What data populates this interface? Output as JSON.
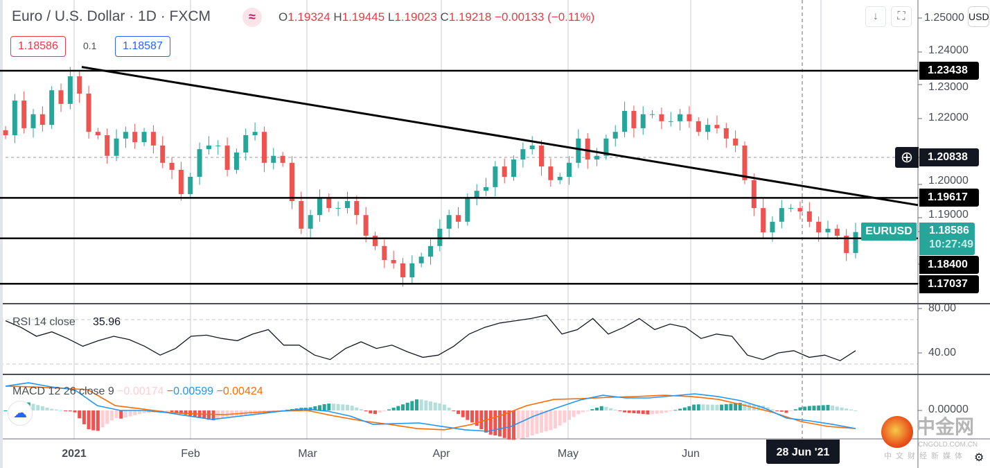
{
  "header": {
    "symbol_title": "Euro / U.S. Dollar · 1D · FXCM",
    "indicator_icon": "wave-icon",
    "ohlc": {
      "o_label": "O",
      "o": "1.19324",
      "h_label": "H",
      "h": "1.19445",
      "l_label": "L",
      "l": "1.19023",
      "c_label": "C",
      "c": "1.19218",
      "change": "−0.00133 (−0.11%)"
    },
    "bid": "1.18586",
    "spread": "0.1",
    "ask": "1.18587"
  },
  "toolbar": {
    "download_icon": "↓",
    "fullscreen_icon": "⛶",
    "currency": "USD"
  },
  "price_axis": {
    "ticks": [
      "1.24000",
      "1.23000",
      "1.22000",
      "1.20000",
      "1.19000"
    ],
    "top_tick_partial": "1.25000"
  },
  "levels": {
    "l1": "1.23438",
    "crosshair": "1.20838",
    "l2": "1.19617",
    "l3": "1.18400",
    "l4": "1.17037"
  },
  "last_price": {
    "symbol": "EURUSD",
    "price": "1.18586",
    "countdown": "10:27:49"
  },
  "rsi": {
    "legend_name": "RSI 14 close",
    "legend_value": "35.96",
    "ticks": [
      "80.00",
      "40.00"
    ]
  },
  "macd": {
    "legend_name": "MACD 12 26 close 9",
    "hist_value": "−0.00174",
    "macd_value": "−0.00599",
    "signal_value": "−0.00424",
    "tick": "0.00000"
  },
  "time_axis": {
    "labels": [
      "2021",
      "Feb",
      "Mar",
      "Apr",
      "May",
      "Jun"
    ],
    "crosshair_label": "28 Jun '21"
  },
  "watermark": {
    "name": "中金网",
    "domain": "CNGOLD.COM.CN",
    "tagline": "中文财经新媒体"
  },
  "colors": {
    "up": "#26a69a",
    "down": "#ef5350",
    "macd": "#2196f3",
    "signal": "#ff6d00"
  },
  "chart_data": {
    "type": "candlestick",
    "price_range": [
      1.165,
      1.255
    ],
    "horizontal_levels": [
      1.23438,
      1.19617,
      1.184,
      1.17037
    ],
    "trendline": {
      "from": 1.2355,
      "to": 1.194
    },
    "closes": [
      1.215,
      1.2254,
      1.2171,
      1.2213,
      1.2181,
      1.2285,
      1.2244,
      1.2327,
      1.2275,
      1.216,
      1.215,
      1.2088,
      1.214,
      1.216,
      1.2129,
      1.216,
      1.2119,
      1.2067,
      1.2046,
      1.1973,
      1.2025,
      1.2108,
      1.2119,
      1.2119,
      1.2046,
      1.2098,
      1.215,
      1.216,
      1.2067,
      1.2088,
      1.2067,
      1.1952,
      1.1869,
      1.191,
      1.1963,
      1.1931,
      1.1931,
      1.1952,
      1.191,
      1.1848,
      1.1817,
      1.1775,
      1.1765,
      1.1723,
      1.1765,
      1.1785,
      1.1817,
      1.1869,
      1.191,
      1.189,
      1.1963,
      1.1983,
      1.1994,
      1.2056,
      1.2025,
      1.2077,
      1.2108,
      1.2119,
      1.2056,
      1.2015,
      1.2025,
      1.2067,
      1.214,
      1.2077,
      1.2088,
      1.214,
      1.216,
      1.2223,
      1.2171,
      1.2213,
      1.2213,
      1.2192,
      1.2192,
      1.2213,
      1.2192,
      1.216,
      1.2181,
      1.2171,
      1.214,
      1.2119,
      1.2015,
      1.1931,
      1.1858,
      1.189,
      1.1931,
      1.1931,
      1.1921,
      1.189,
      1.1858,
      1.1869,
      1.1848,
      1.1796,
      1.1859
    ],
    "rsi": [
      69,
      63,
      55,
      59,
      53,
      46,
      51,
      55,
      52,
      46,
      38,
      44,
      55,
      56,
      53,
      51,
      57,
      61,
      47,
      47,
      38,
      34,
      44,
      50,
      44,
      47,
      41,
      36,
      38,
      46,
      57,
      63,
      67,
      69,
      71,
      74,
      57,
      61,
      71,
      57,
      63,
      71,
      61,
      66,
      63,
      53,
      57,
      55,
      38,
      34,
      40,
      42,
      36,
      38,
      33,
      42
    ],
    "macd": [
      0.0117,
      0.0133,
      0.0113,
      0.01,
      0.0023,
      0,
      0,
      -0.001,
      -0.0027,
      -0.0043,
      -0.003,
      -0.0017,
      -0.0003,
      0.0007,
      -0.0003,
      -0.0027,
      -0.0067,
      -0.0063,
      -0.006,
      -0.0077,
      -0.0093,
      -0.01,
      -0.0077,
      -0.0027,
      0.0013,
      0.005,
      0.0073,
      0.006,
      0.006,
      0.007,
      0.008,
      0.0067,
      0.0047,
      0.0013,
      -0.0037,
      -0.005,
      -0.0067,
      -0.0087
    ],
    "signal": [
      0.0117,
      0.0113,
      0.0107,
      0.01,
      0.0023,
      0.0007,
      -0.001,
      -0.0017,
      -0.002,
      -0.001,
      -0.0003,
      0,
      -0.0027,
      -0.005,
      -0.0067,
      -0.0087,
      -0.0093,
      -0.0067,
      -0.0027,
      0.0023,
      0.0053,
      0.0057,
      0.0063,
      0.0067,
      0.0073,
      0.0067,
      0.0053,
      0.0023,
      -0.001,
      -0.0053,
      -0.0077,
      -0.0087
    ]
  }
}
